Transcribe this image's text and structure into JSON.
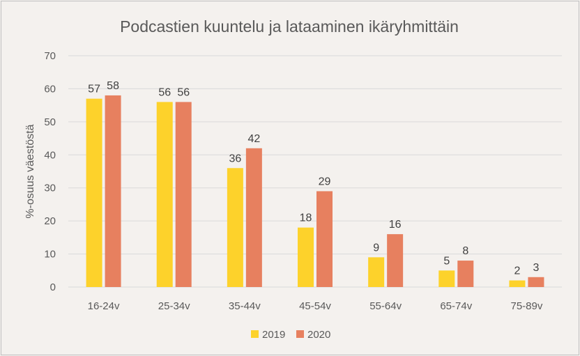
{
  "chart_data": {
    "type": "bar",
    "title": "Podcastien kuuntelu ja lataaminen ikäryhmittäin",
    "xlabel": "",
    "ylabel": "%-osuus väestöstä",
    "ylim": [
      0,
      70
    ],
    "yticks": [
      0,
      10,
      20,
      30,
      40,
      50,
      60,
      70
    ],
    "grid": true,
    "legend_position": "bottom",
    "categories": [
      "16-24v",
      "25-34v",
      "35-44v",
      "45-54v",
      "55-64v",
      "65-74v",
      "75-89v"
    ],
    "series": [
      {
        "name": "2019",
        "color": "#fdd22b",
        "values": [
          57,
          56,
          36,
          18,
          9,
          5,
          2
        ]
      },
      {
        "name": "2020",
        "color": "#e7805f",
        "values": [
          58,
          56,
          42,
          29,
          16,
          8,
          3
        ]
      }
    ]
  }
}
